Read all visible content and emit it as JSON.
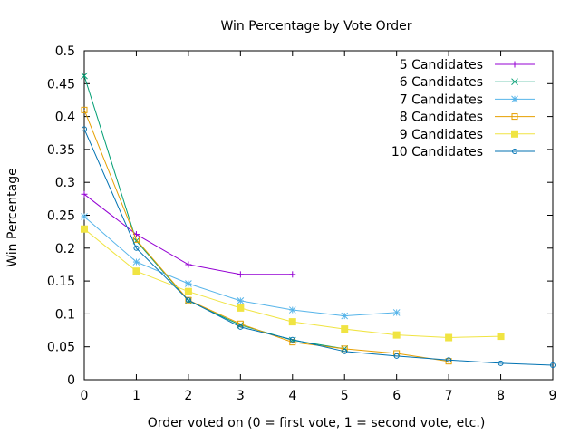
{
  "chart_data": {
    "type": "line",
    "title": "Win Percentage by Vote Order",
    "xlabel": "Order voted on (0 = first vote, 1 = second vote, etc.)",
    "ylabel": "Win Percentage",
    "xlim": [
      0,
      9
    ],
    "ylim": [
      0,
      0.5
    ],
    "x_ticks": [
      "0",
      "1",
      "2",
      "3",
      "4",
      "5",
      "6",
      "7",
      "8",
      "9"
    ],
    "y_ticks": [
      "0",
      "0.05",
      "0.1",
      "0.15",
      "0.2",
      "0.25",
      "0.3",
      "0.35",
      "0.4",
      "0.45",
      "0.5"
    ],
    "grid": false,
    "legend_position": "top-right",
    "series": [
      {
        "name": "5 Candidates",
        "color": "#9400d3",
        "marker": "plus",
        "x": [
          0,
          1,
          2,
          3,
          4
        ],
        "values": [
          0.282,
          0.221,
          0.175,
          0.16,
          0.16
        ]
      },
      {
        "name": "6 Candidates",
        "color": "#009e73",
        "marker": "cross",
        "x": [
          0,
          1,
          2,
          3,
          4,
          5
        ],
        "values": [
          0.462,
          0.211,
          0.12,
          0.083,
          0.06,
          0.047
        ]
      },
      {
        "name": "7 Candidates",
        "color": "#56b4e9",
        "marker": "star",
        "x": [
          0,
          1,
          2,
          3,
          4,
          5,
          6
        ],
        "values": [
          0.248,
          0.179,
          0.146,
          0.12,
          0.106,
          0.097,
          0.102
        ]
      },
      {
        "name": "8 Candidates",
        "color": "#e69f00",
        "marker": "open-square",
        "x": [
          0,
          1,
          2,
          3,
          4,
          5,
          6,
          7
        ],
        "values": [
          0.41,
          0.213,
          0.121,
          0.085,
          0.057,
          0.047,
          0.04,
          0.028
        ]
      },
      {
        "name": "9 Candidates",
        "color": "#f0e442",
        "marker": "filled-square",
        "x": [
          0,
          1,
          2,
          3,
          4,
          5,
          6,
          7,
          8
        ],
        "values": [
          0.229,
          0.165,
          0.134,
          0.109,
          0.088,
          0.077,
          0.068,
          0.064,
          0.066
        ]
      },
      {
        "name": "10 Candidates",
        "color": "#0072b2",
        "marker": "open-circle",
        "x": [
          0,
          1,
          2,
          3,
          4,
          5,
          6,
          7,
          8,
          9
        ],
        "values": [
          0.381,
          0.2,
          0.121,
          0.08,
          0.061,
          0.043,
          0.036,
          0.03,
          0.025,
          0.022
        ]
      }
    ]
  }
}
